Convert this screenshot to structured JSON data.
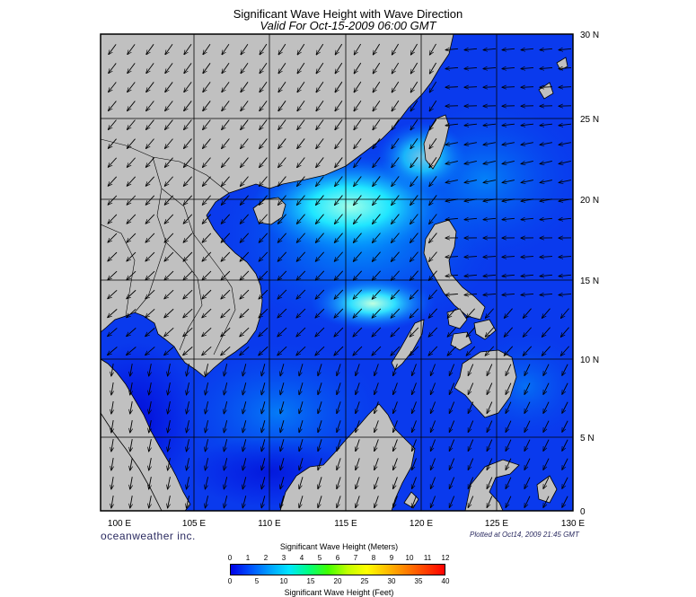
{
  "title": "Significant Wave Height with Wave Direction",
  "subtitle": "Valid For Oct-15-2009 06:00 GMT",
  "brand": "oceanweather inc.",
  "plotted": "Plotted at Oct14, 2009 21:45 GMT",
  "map": {
    "lon_range": [
      98,
      130
    ],
    "lat_range": [
      0,
      30
    ],
    "lon_labels": [
      "100 E",
      "105 E",
      "110 E",
      "115 E",
      "120 E",
      "125 E",
      "130 E"
    ],
    "lat_labels": [
      "30 N",
      "25 N",
      "20 N",
      "15 N",
      "10 N",
      "5 N",
      "0"
    ],
    "land_color": "#c0c0c0",
    "grid": true
  },
  "colorbar": {
    "meters_label": "Significant Wave Height (Meters)",
    "feet_label": "Significant Wave Height (Feet)",
    "meters_ticks": [
      "0",
      "1",
      "2",
      "3",
      "4",
      "5",
      "6",
      "7",
      "8",
      "9",
      "10",
      "11",
      "12"
    ],
    "feet_ticks": [
      "0",
      "5",
      "10",
      "15",
      "20",
      "25",
      "30",
      "35",
      "40"
    ],
    "colors": [
      "#0000e6",
      "#0050ff",
      "#00a0ff",
      "#00e6ff",
      "#00ff80",
      "#40ff00",
      "#c0ff00",
      "#ffff00",
      "#ffc000",
      "#ff8000",
      "#ff4000",
      "#ff0000"
    ]
  }
}
